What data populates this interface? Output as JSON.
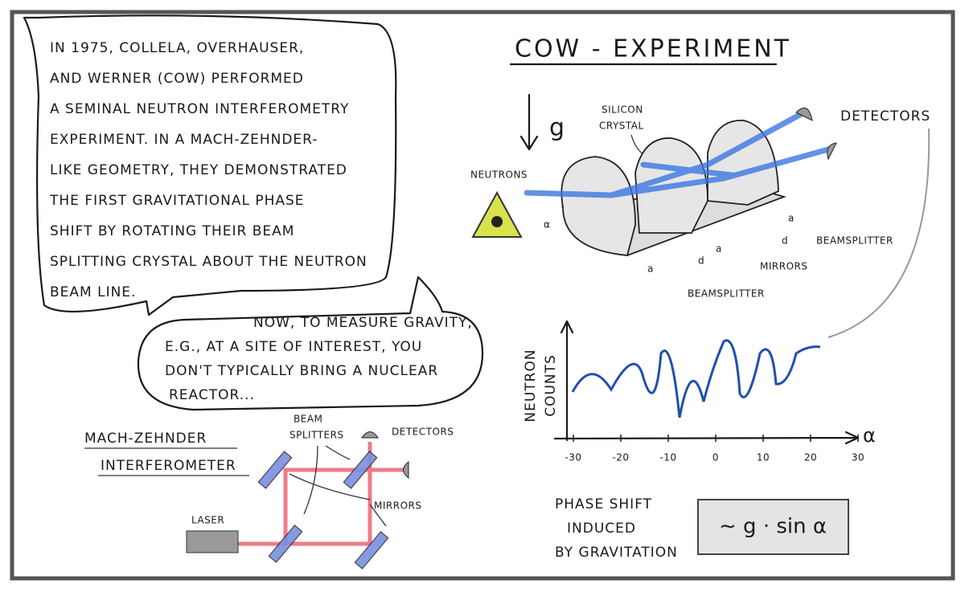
{
  "intro_bubble": {
    "lines": [
      "IN 1975, COLLELA, OVERHAUSER,",
      "AND WERNER (COW) PERFORMED",
      "A SEMINAL NEUTRON INTERFEROMETRY",
      "EXPERIMENT. IN A MACH-ZEHNDER-",
      "LIKE GEOMETRY, THEY DEMONSTRATED",
      "THE FIRST GRAVITATIONAL PHASE",
      "SHIFT BY ROTATING THEIR BEAM",
      "SPLITTING CRYSTAL ABOUT THE NEUTRON",
      "BEAM LINE."
    ]
  },
  "reply_bubble": {
    "lines": [
      "NOW, TO MEASURE GRAVITY,",
      "E.G., AT A SITE OF INTEREST, YOU",
      "DON'T TYPICALLY BRING A NUCLEAR",
      "REACTOR..."
    ]
  },
  "cow_experiment": {
    "title": "COW - EXPERIMENT",
    "gravity": "g",
    "crystal": [
      "SILICON",
      "CRYSTAL"
    ],
    "neutrons": "NEUTRONS",
    "detectors": "DETECTORS",
    "angle": "α",
    "spacing_a": "a",
    "spacing_d": "d",
    "beamsplitter_right": "BEAMSPLITTER",
    "mirrors": "MIRRORS",
    "beamsplitter_bottom": "BEAMSPLITTER"
  },
  "graph": {
    "y_label": [
      "NEUTRON",
      "COUNTS"
    ],
    "x_label": "α",
    "xticks": [
      -30,
      -20,
      -10,
      0,
      10,
      20,
      30
    ]
  },
  "phase_shift": {
    "lines": [
      "PHASE SHIFT",
      "INDUCED",
      "BY GRAVITATION"
    ],
    "formula": "∼ g · sin α"
  },
  "mach_zehnder": {
    "title": [
      "MACH-ZEHNDER",
      "INTERFEROMETER"
    ],
    "beam_splitters": [
      "BEAM",
      "SPLITTERS"
    ],
    "detectors": "DETECTORS",
    "mirrors": "MIRRORS",
    "laser": "LASER"
  }
}
